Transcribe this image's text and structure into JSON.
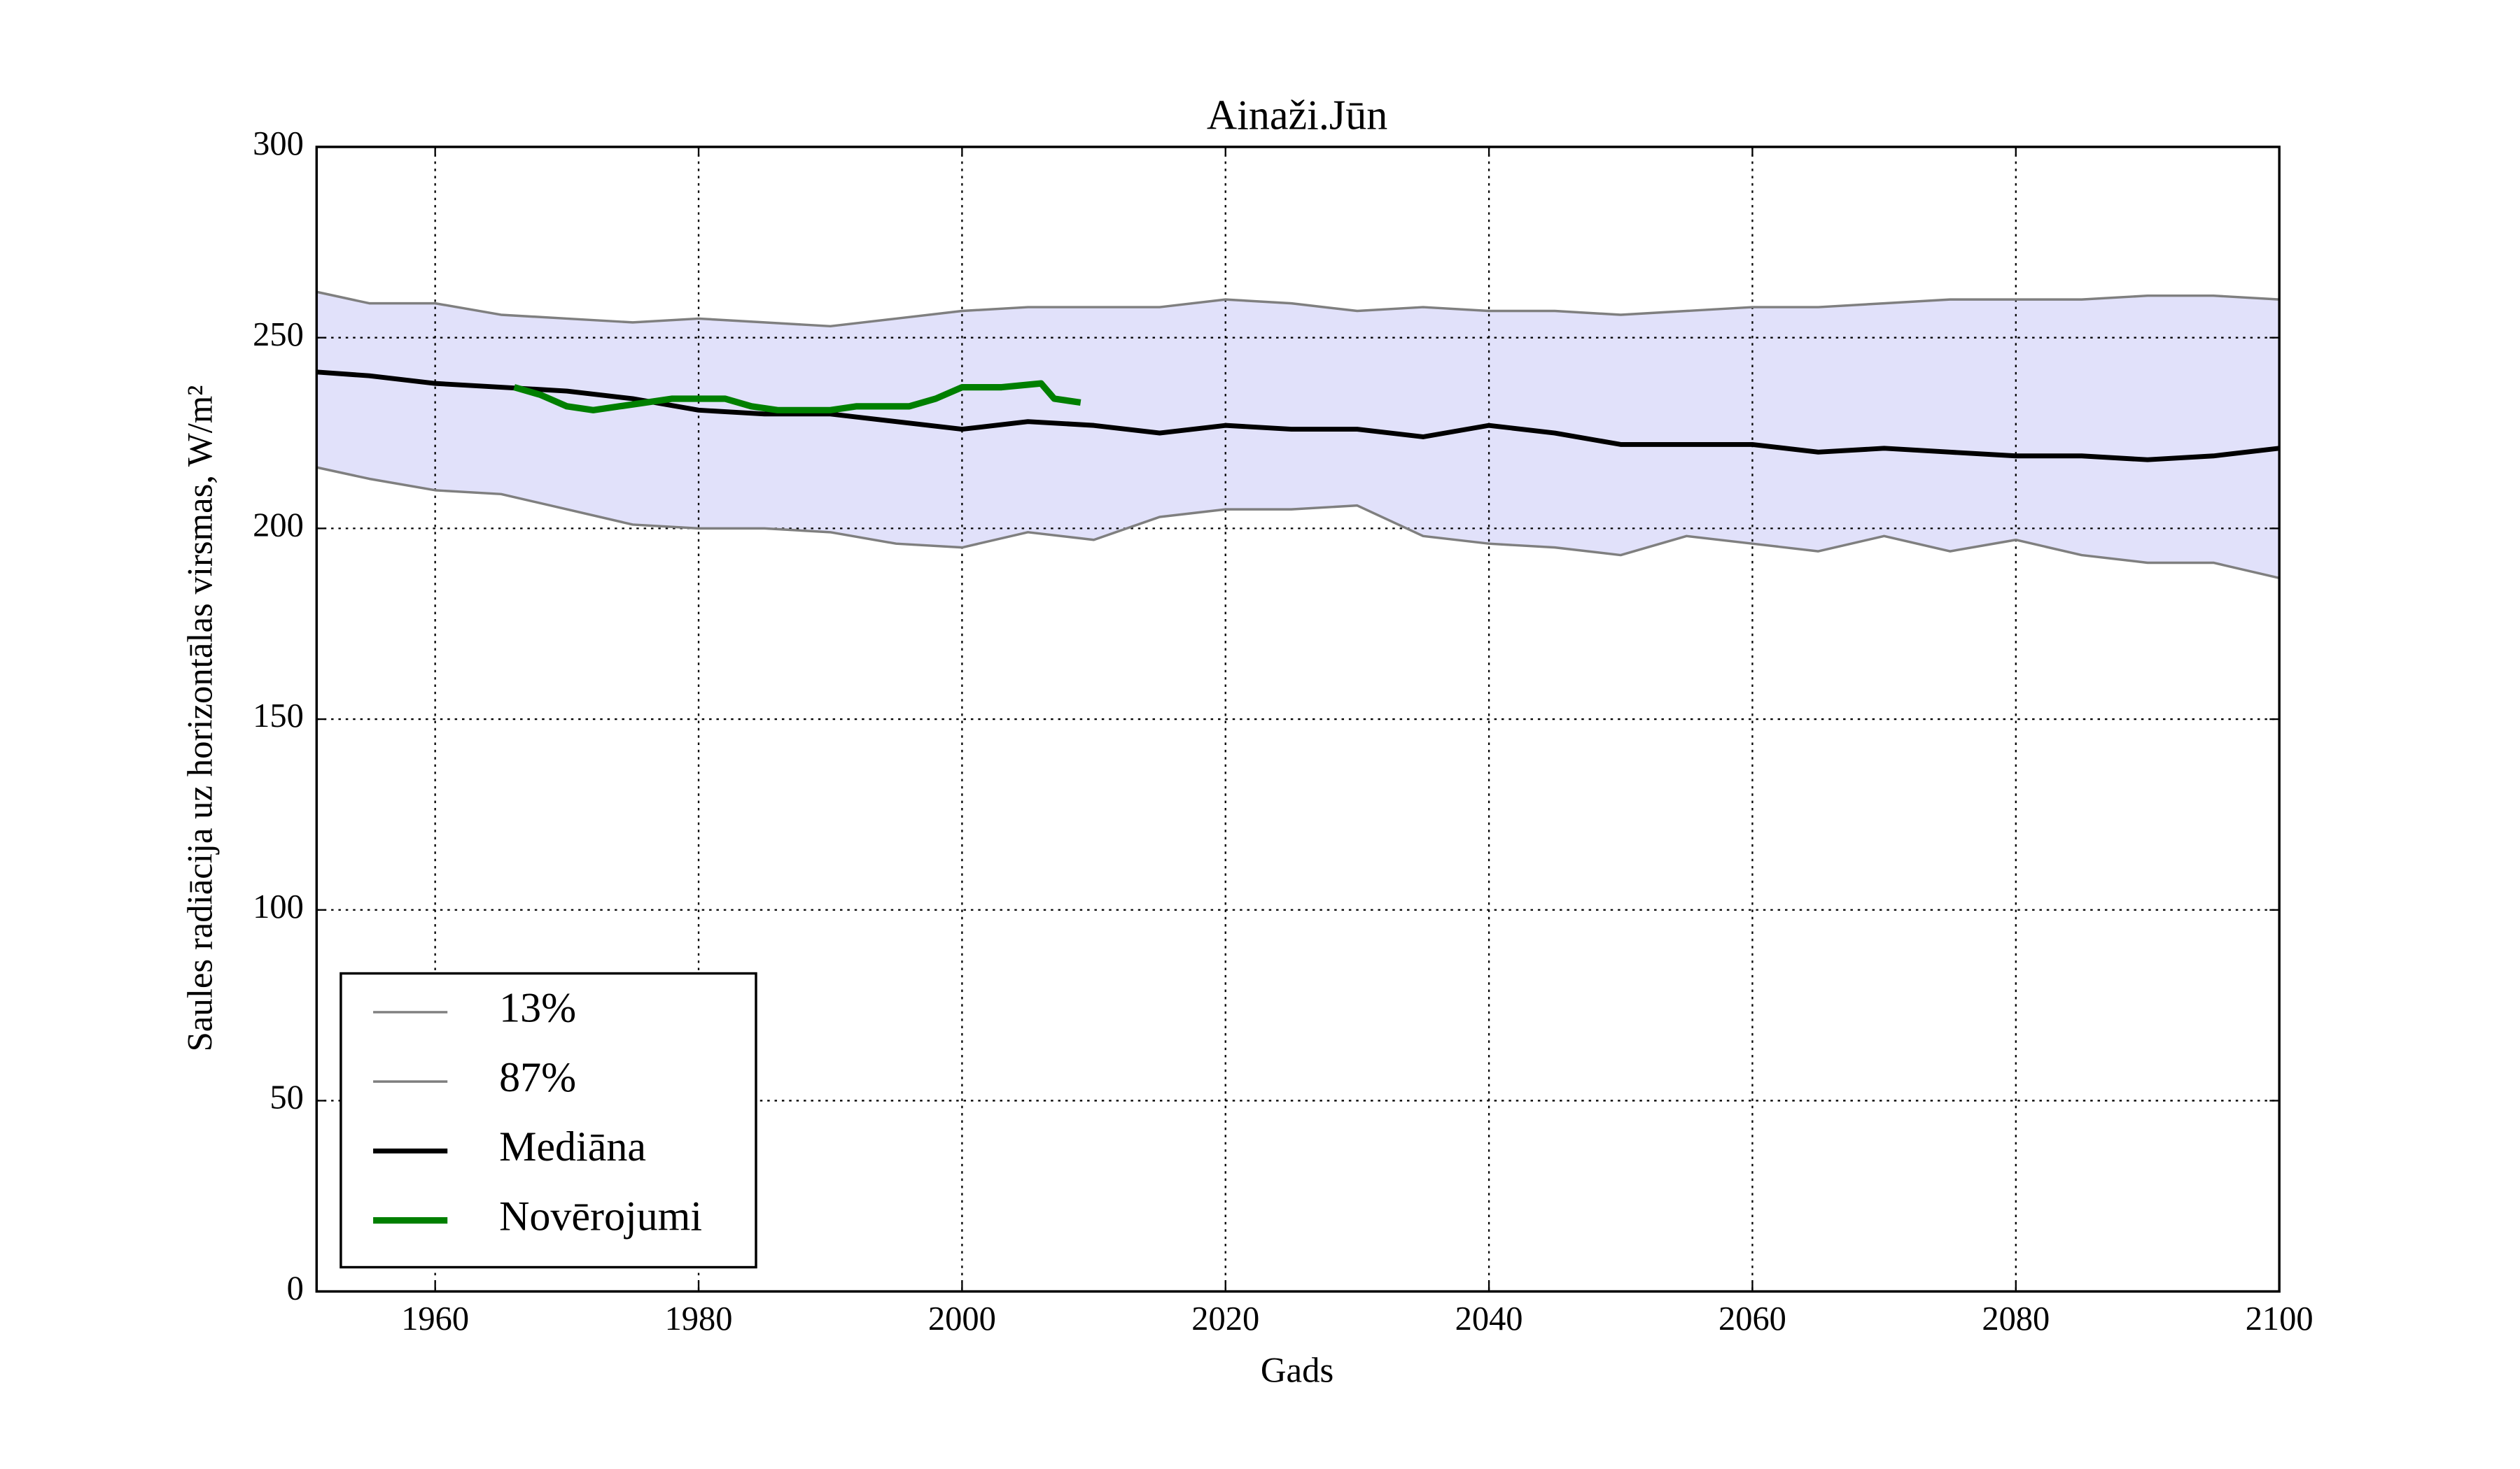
{
  "chart_data": {
    "type": "line",
    "title": "Ainaži.Jūn",
    "xlabel": "Gads",
    "ylabel": "Saules radiācija uz horizontālas virsmas, W/m²",
    "xlim": [
      1951,
      2100
    ],
    "xticks": [
      1960,
      1980,
      2000,
      2020,
      2040,
      2060,
      2080,
      2100
    ],
    "ylim": [
      0,
      300
    ],
    "yticks": [
      0,
      50,
      100,
      150,
      200,
      250,
      300
    ],
    "grid": true,
    "legend": "lower left",
    "band_color": "#e1e1fa",
    "series": [
      {
        "name": "13%",
        "color": "#7f7f7f",
        "width": 1.5,
        "x": [
          1951,
          1955,
          1960,
          1965,
          1970,
          1975,
          1980,
          1985,
          1990,
          1995,
          2000,
          2005,
          2010,
          2015,
          2020,
          2025,
          2030,
          2035,
          2040,
          2045,
          2050,
          2055,
          2060,
          2065,
          2070,
          2075,
          2080,
          2085,
          2090,
          2095,
          2100
        ],
        "values": [
          216,
          213,
          210,
          209,
          205,
          201,
          200,
          200,
          199,
          196,
          195,
          199,
          197,
          203,
          205,
          205,
          206,
          198,
          196,
          195,
          193,
          198,
          196,
          194,
          198,
          194,
          197,
          193,
          191,
          191,
          187
        ]
      },
      {
        "name": "87%",
        "color": "#7f7f7f",
        "width": 1.5,
        "x": [
          1951,
          1955,
          1960,
          1965,
          1970,
          1975,
          1980,
          1985,
          1990,
          1995,
          2000,
          2005,
          2010,
          2015,
          2020,
          2025,
          2030,
          2035,
          2040,
          2045,
          2050,
          2055,
          2060,
          2065,
          2070,
          2075,
          2080,
          2085,
          2090,
          2095,
          2100
        ],
        "values": [
          262,
          259,
          259,
          256,
          255,
          254,
          255,
          254,
          253,
          255,
          257,
          258,
          258,
          258,
          260,
          259,
          257,
          258,
          257,
          257,
          256,
          257,
          258,
          258,
          259,
          260,
          260,
          260,
          261,
          261,
          260
        ]
      },
      {
        "name": "Mediāna",
        "color": "#000000",
        "width": 3,
        "x": [
          1951,
          1955,
          1960,
          1965,
          1970,
          1975,
          1980,
          1985,
          1990,
          1995,
          2000,
          2005,
          2010,
          2015,
          2020,
          2025,
          2030,
          2035,
          2040,
          2045,
          2050,
          2055,
          2060,
          2065,
          2070,
          2075,
          2080,
          2085,
          2090,
          2095,
          2100
        ],
        "values": [
          241,
          240,
          238,
          237,
          236,
          234,
          231,
          230,
          230,
          228,
          226,
          228,
          227,
          225,
          227,
          226,
          226,
          224,
          227,
          225,
          222,
          222,
          222,
          220,
          221,
          220,
          219,
          219,
          218,
          219,
          221
        ]
      },
      {
        "name": "Novērojumi",
        "color": "#007f00",
        "width": 4,
        "x": [
          1966,
          1968,
          1970,
          1972,
          1974,
          1976,
          1978,
          1980,
          1982,
          1984,
          1986,
          1988,
          1990,
          1992,
          1994,
          1996,
          1998,
          2000,
          2003,
          2006,
          2007,
          2009
        ],
        "values": [
          237,
          235,
          232,
          231,
          232,
          233,
          234,
          234,
          234,
          232,
          231,
          231,
          231,
          232,
          232,
          232,
          234,
          237,
          237,
          238,
          234,
          233
        ]
      }
    ]
  }
}
